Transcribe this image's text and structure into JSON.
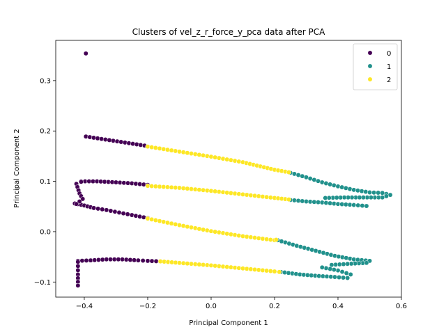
{
  "chart_data": {
    "type": "scatter",
    "title": "Clusters of vel_z_r_force_y_pca data after PCA",
    "xlabel": "Principal Component 1",
    "ylabel": "Principal Component 2",
    "xlim": [
      -0.49,
      0.6
    ],
    "ylim": [
      -0.13,
      0.38
    ],
    "xticks": [
      -0.4,
      -0.2,
      0.0,
      0.2,
      0.4,
      0.6
    ],
    "xtick_labels": [
      "−0.4",
      "−0.2",
      "0.0",
      "0.2",
      "0.4",
      "0.6"
    ],
    "yticks": [
      -0.1,
      0.0,
      0.1,
      0.2,
      0.3
    ],
    "ytick_labels": [
      "−0.1",
      "0.0",
      "0.1",
      "0.2",
      "0.3"
    ],
    "grid": false,
    "legend_placement": "top-right",
    "series": [
      {
        "name": "0",
        "color": "#440154",
        "segments": [
          [
            [
              -0.395,
              0.189
            ],
            [
              -0.21,
              0.171
            ]
          ],
          [
            [
              -0.43,
              0.056
            ],
            [
              -0.4,
              0.052
            ],
            [
              -0.37,
              0.047
            ],
            [
              -0.33,
              0.043
            ],
            [
              -0.29,
              0.038
            ],
            [
              -0.25,
              0.033
            ],
            [
              -0.2,
              0.027
            ]
          ],
          [
            [
              -0.41,
              0.1
            ],
            [
              -0.36,
              0.1
            ],
            [
              -0.3,
              0.098
            ],
            [
              -0.25,
              0.096
            ],
            [
              -0.2,
              0.093
            ]
          ],
          [
            [
              -0.42,
              -0.058
            ],
            [
              -0.38,
              -0.057
            ],
            [
              -0.33,
              -0.055
            ],
            [
              -0.28,
              -0.055
            ],
            [
              -0.23,
              -0.057
            ],
            [
              -0.2,
              -0.058
            ],
            [
              -0.16,
              -0.059
            ]
          ],
          [
            [
              -0.42,
              -0.06
            ],
            [
              -0.42,
              -0.085
            ],
            [
              -0.42,
              -0.107
            ]
          ],
          [
            [
              -0.41,
              0.099
            ],
            [
              -0.425,
              0.095
            ],
            [
              -0.415,
              0.076
            ],
            [
              -0.405,
              0.065
            ],
            [
              -0.425,
              0.055
            ]
          ]
        ],
        "points": [
          [
            -0.395,
            0.354
          ],
          [
            -0.42,
            -0.107
          ]
        ]
      },
      {
        "name": "1",
        "color": "#21918c",
        "segments": [
          [
            [
              0.25,
              0.117
            ],
            [
              0.3,
              0.108
            ],
            [
              0.35,
              0.098
            ],
            [
              0.4,
              0.09
            ],
            [
              0.45,
              0.083
            ],
            [
              0.5,
              0.078
            ],
            [
              0.54,
              0.077
            ],
            [
              0.565,
              0.073
            ],
            [
              0.54,
              0.068
            ],
            [
              0.48,
              0.068
            ],
            [
              0.42,
              0.068
            ],
            [
              0.36,
              0.067
            ]
          ],
          [
            [
              0.25,
              0.063
            ],
            [
              0.3,
              0.06
            ],
            [
              0.35,
              0.058
            ],
            [
              0.4,
              0.055
            ],
            [
              0.45,
              0.053
            ],
            [
              0.49,
              0.051
            ]
          ],
          [
            [
              0.21,
              -0.017
            ],
            [
              0.27,
              -0.028
            ],
            [
              0.33,
              -0.038
            ],
            [
              0.39,
              -0.048
            ],
            [
              0.45,
              -0.055
            ],
            [
              0.5,
              -0.058
            ],
            [
              0.49,
              -0.062
            ],
            [
              0.43,
              -0.064
            ],
            [
              0.38,
              -0.066
            ]
          ],
          [
            [
              0.22,
              -0.08
            ],
            [
              0.28,
              -0.085
            ],
            [
              0.34,
              -0.088
            ],
            [
              0.39,
              -0.09
            ],
            [
              0.43,
              -0.092
            ],
            [
              0.44,
              -0.085
            ],
            [
              0.4,
              -0.077
            ],
            [
              0.35,
              -0.071
            ]
          ]
        ],
        "points": []
      },
      {
        "name": "2",
        "color": "#fde725",
        "segments": [
          [
            [
              -0.2,
              0.169
            ],
            [
              -0.1,
              0.159
            ],
            [
              0.0,
              0.149
            ],
            [
              0.1,
              0.138
            ],
            [
              0.2,
              0.123
            ],
            [
              0.245,
              0.118
            ]
          ],
          [
            [
              -0.2,
              0.091
            ],
            [
              -0.1,
              0.087
            ],
            [
              0.0,
              0.081
            ],
            [
              0.1,
              0.074
            ],
            [
              0.2,
              0.067
            ],
            [
              0.245,
              0.064
            ]
          ],
          [
            [
              -0.2,
              0.026
            ],
            [
              -0.1,
              0.013
            ],
            [
              0.0,
              0.001
            ],
            [
              0.1,
              -0.009
            ],
            [
              0.2,
              -0.017
            ],
            [
              0.205,
              -0.016
            ]
          ],
          [
            [
              -0.16,
              -0.059
            ],
            [
              -0.1,
              -0.062
            ],
            [
              0.0,
              -0.067
            ],
            [
              0.1,
              -0.073
            ],
            [
              0.2,
              -0.079
            ],
            [
              0.215,
              -0.08
            ]
          ]
        ],
        "points": []
      }
    ]
  }
}
